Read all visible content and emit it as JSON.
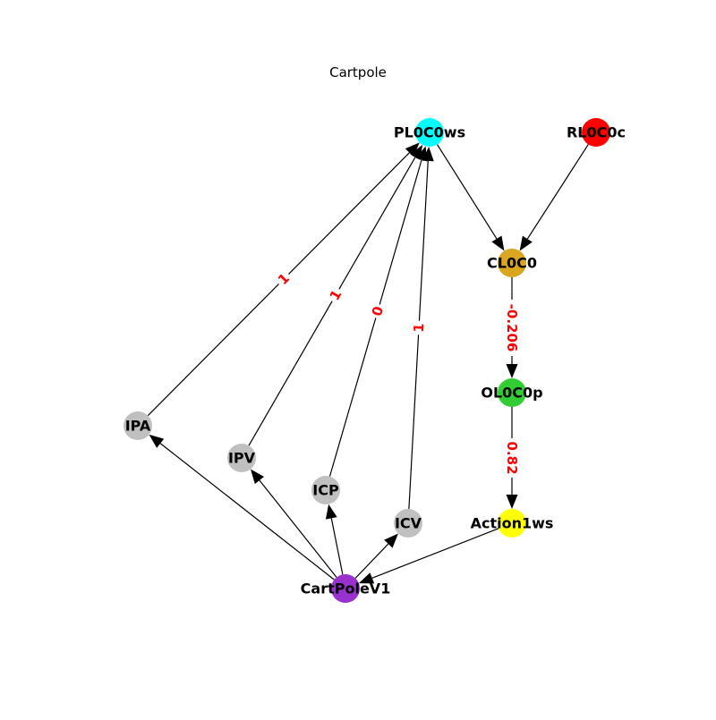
{
  "title": "Cartpole",
  "nodes": [
    {
      "id": "PL0C0ws",
      "label": "PL0C0ws",
      "color": "#00ffff"
    },
    {
      "id": "RL0C0c",
      "label": "RL0C0c",
      "color": "#ff0000"
    },
    {
      "id": "CL0C0",
      "label": "CL0C0",
      "color": "#daa520"
    },
    {
      "id": "OL0C0p",
      "label": "OL0C0p",
      "color": "#32cd32"
    },
    {
      "id": "Action1ws",
      "label": "Action1ws",
      "color": "#ffff00"
    },
    {
      "id": "IPA",
      "label": "IPA",
      "color": "#c0c0c0"
    },
    {
      "id": "IPV",
      "label": "IPV",
      "color": "#c0c0c0"
    },
    {
      "id": "ICP",
      "label": "ICP",
      "color": "#c0c0c0"
    },
    {
      "id": "ICV",
      "label": "ICV",
      "color": "#c0c0c0"
    },
    {
      "id": "CartPoleV1",
      "label": "CartPoleV1",
      "color": "#9932cc"
    }
  ],
  "edges": [
    {
      "source": "PL0C0ws",
      "target": "CL0C0",
      "label": ""
    },
    {
      "source": "RL0C0c",
      "target": "CL0C0",
      "label": ""
    },
    {
      "source": "CL0C0",
      "target": "OL0C0p",
      "label": "-0.206"
    },
    {
      "source": "OL0C0p",
      "target": "Action1ws",
      "label": "0.82"
    },
    {
      "source": "Action1ws",
      "target": "CartPoleV1",
      "label": ""
    },
    {
      "source": "CartPoleV1",
      "target": "IPA",
      "label": ""
    },
    {
      "source": "CartPoleV1",
      "target": "IPV",
      "label": ""
    },
    {
      "source": "CartPoleV1",
      "target": "ICP",
      "label": ""
    },
    {
      "source": "CartPoleV1",
      "target": "ICV",
      "label": ""
    },
    {
      "source": "IPA",
      "target": "PL0C0ws",
      "label": "1"
    },
    {
      "source": "IPV",
      "target": "PL0C0ws",
      "label": "1"
    },
    {
      "source": "ICP",
      "target": "PL0C0ws",
      "label": "0"
    },
    {
      "source": "ICV",
      "target": "PL0C0ws",
      "label": "1"
    }
  ]
}
